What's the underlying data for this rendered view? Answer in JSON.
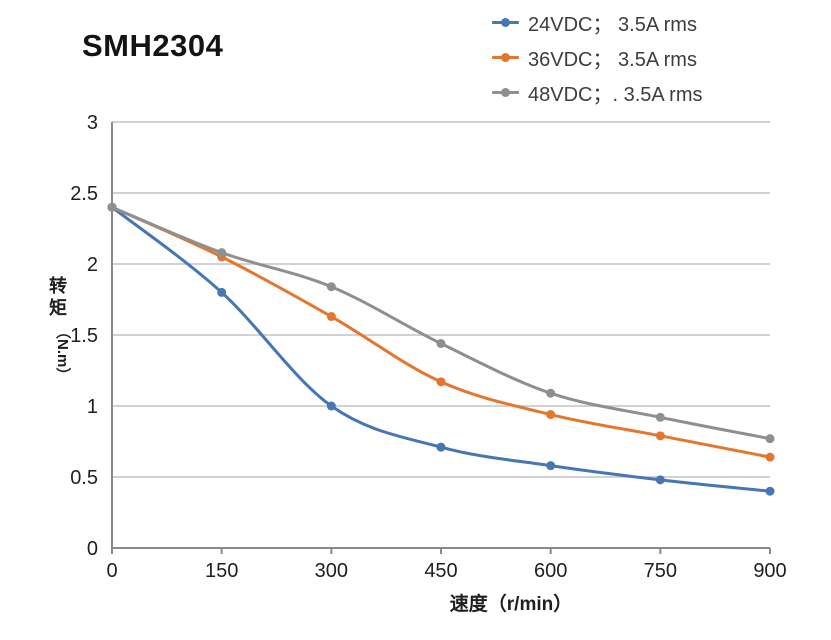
{
  "title": "SMH2304",
  "chart_data": {
    "type": "line",
    "title": "SMH2304",
    "x": [
      0,
      150,
      300,
      450,
      600,
      750,
      900
    ],
    "series": [
      {
        "name": "24VDC； 3.5A rms",
        "color": "#4576B5",
        "values": [
          2.4,
          1.8,
          1.0,
          0.71,
          0.58,
          0.48,
          0.4
        ]
      },
      {
        "name": "36VDC； 3.5A rms",
        "color": "#E4762D",
        "values": [
          2.4,
          2.05,
          1.63,
          1.17,
          0.94,
          0.79,
          0.64
        ]
      },
      {
        "name": "48VDC；. 3.5A rms",
        "color": "#8F8F8F",
        "values": [
          2.4,
          2.08,
          1.84,
          1.44,
          1.09,
          0.92,
          0.77
        ]
      }
    ],
    "xlabel": "速度（r/min）",
    "ylabel": "转矩（N.m）",
    "ylabel_cn": "转矩",
    "ylabel_unit": "（N.m）",
    "xlim": [
      0,
      900
    ],
    "ylim": [
      0,
      3
    ],
    "x_ticks": [
      "0",
      "150",
      "300",
      "450",
      "600",
      "750",
      "900"
    ],
    "y_ticks": [
      "0",
      "0.5",
      "1",
      "1.5",
      "2",
      "2.5",
      "3"
    ],
    "grid": "horizontal",
    "legend_position": "top-right",
    "smooth": true,
    "colors": {
      "grid": "#C4C4C4",
      "axis": "#8A8A8A",
      "tick_text": "#1f1f1f",
      "axis_title_text": "#1f1f1f"
    }
  }
}
